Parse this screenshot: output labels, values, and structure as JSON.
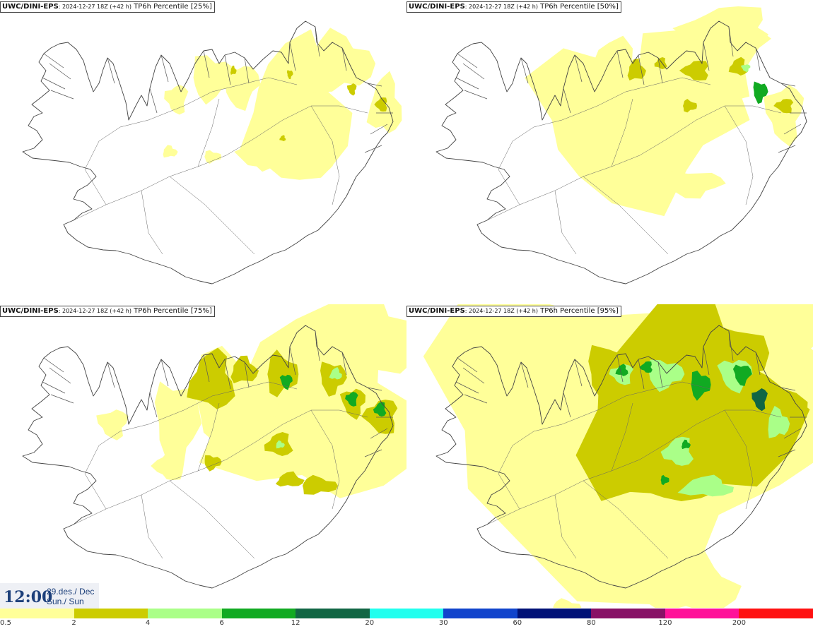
{
  "panels": [
    {
      "model": "UWC/DINI-EPS",
      "run": ": 2024-12-27 18Z (+42 h)",
      "variable": " TP6h Percentile [25%]"
    },
    {
      "model": "UWC/DINI-EPS",
      "run": ": 2024-12-27 18Z (+42 h)",
      "variable": " TP6h Percentile [50%]"
    },
    {
      "model": "UWC/DINI-EPS",
      "run": ": 2024-12-27 18Z (+42 h)",
      "variable": " TP6h Percentile [75%]"
    },
    {
      "model": "UWC/DINI-EPS",
      "run": ": 2024-12-27 18Z (+42 h)",
      "variable": " TP6h Percentile [95%]"
    }
  ],
  "valid_time": {
    "clock": "12:00",
    "date_line1": "29.des./ Dec",
    "date_line2": "Sun./ Sun"
  },
  "legend": {
    "colors": [
      "#ffff99",
      "#cccc00",
      "#aaff88",
      "#11aa22",
      "#116644",
      "#22ffee",
      "#1144cc",
      "#001177",
      "#881166",
      "#ff1199",
      "#ff1111"
    ],
    "labels": [
      "0.5",
      "2",
      "4",
      "6",
      "12",
      "20",
      "30",
      "60",
      "80",
      "120",
      "200"
    ]
  }
}
